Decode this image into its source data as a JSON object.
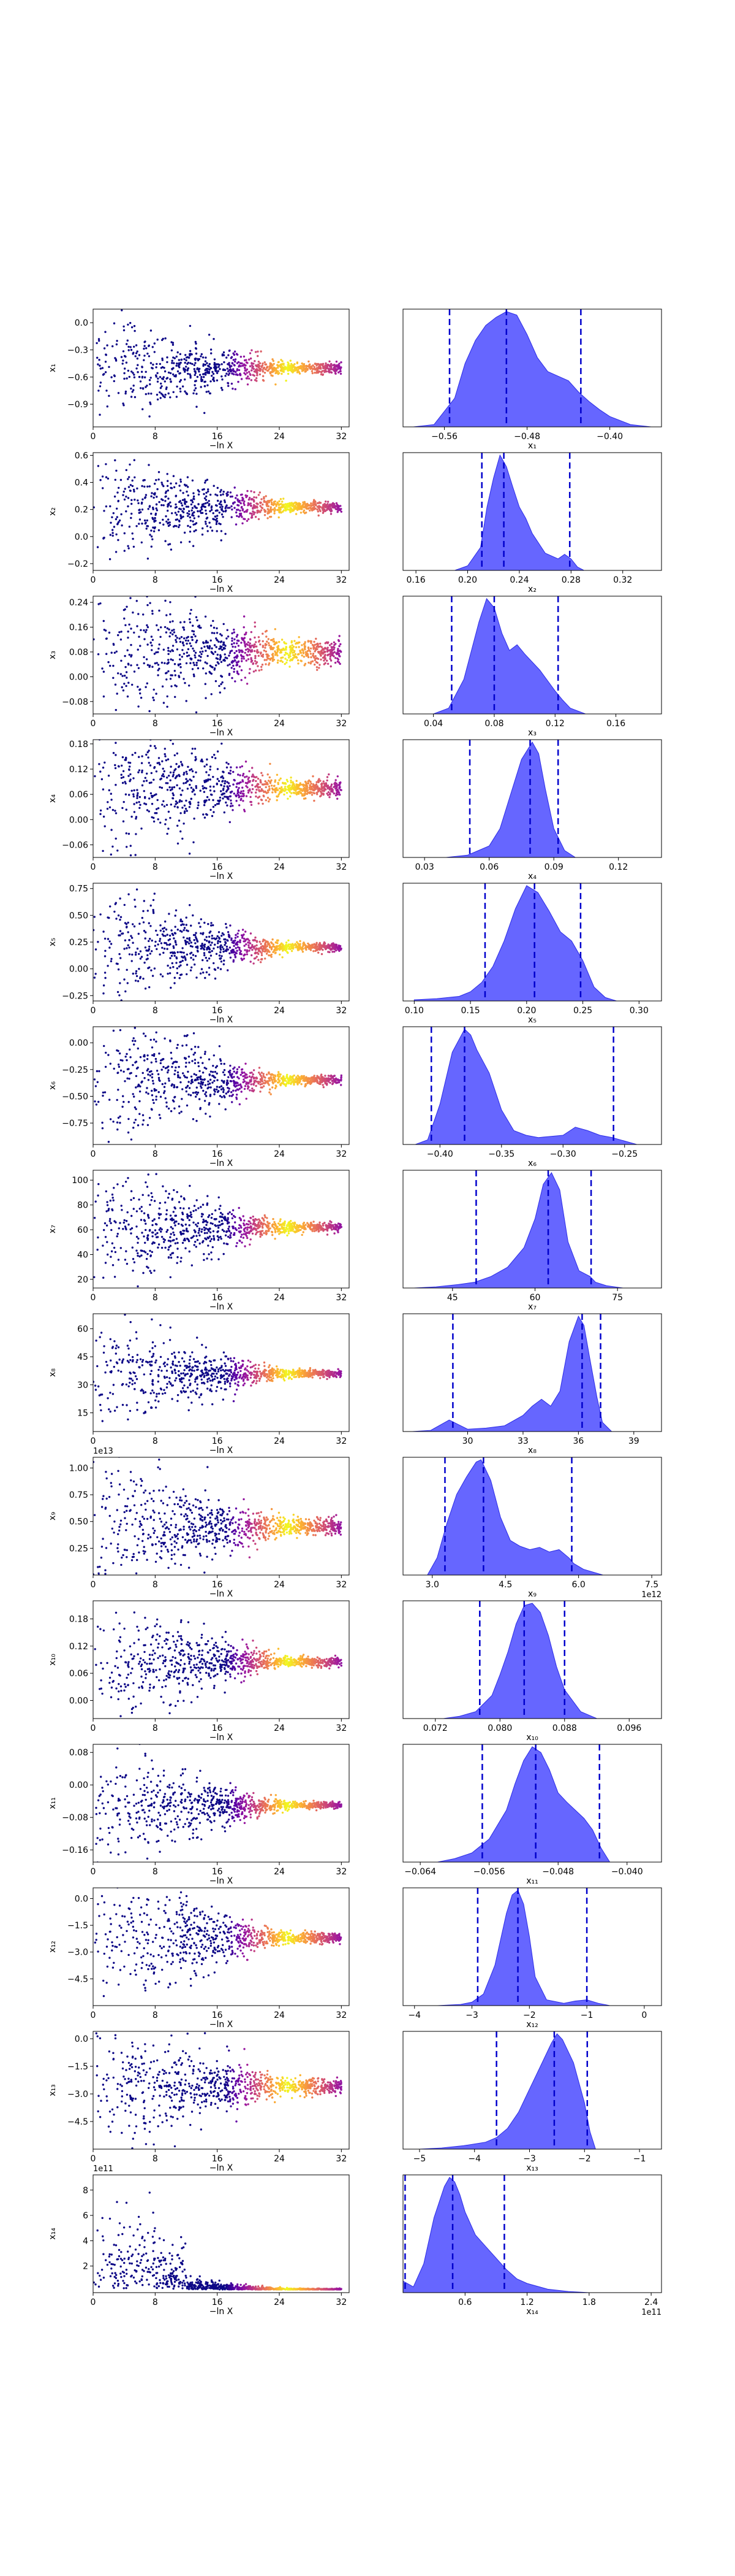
{
  "colors": {
    "trace_low": "#0d0887",
    "trace_high": "#f0f921",
    "kde_fill": "#5555ff",
    "kde_edge": "#2a2ae6",
    "quantile_line": "#0000cc"
  },
  "trace_xlabel": "−ln X",
  "trace_xticks": [
    0,
    8,
    16,
    24,
    32
  ],
  "chart_data": [
    {
      "param": "x1",
      "ylabel": "x₁",
      "yticks": [
        -0.9,
        -0.6,
        -0.3,
        0.0
      ],
      "yticklabels": [
        "−0.9",
        "−0.6",
        "−0.3",
        "0.0"
      ],
      "trace_center": -0.5,
      "trace_spread0": 0.28,
      "trace_spreadN": 0.03,
      "ylim": [
        -1.15,
        0.15
      ],
      "type": "trace+kde",
      "xlabel": "x₁",
      "xlim": [
        -0.6,
        -0.35
      ],
      "xticks": [
        -0.56,
        -0.48,
        -0.4
      ],
      "xticklabels": [
        "−0.56",
        "−0.48",
        "−0.40"
      ],
      "kde_x": [
        -0.59,
        -0.57,
        -0.55,
        -0.54,
        -0.53,
        -0.52,
        -0.51,
        -0.5,
        -0.49,
        -0.48,
        -0.47,
        -0.46,
        -0.45,
        -0.44,
        -0.43,
        -0.42,
        -0.41,
        -0.4,
        -0.38,
        -0.36
      ],
      "kde_y": [
        0.0,
        0.02,
        0.25,
        0.55,
        0.75,
        0.88,
        0.95,
        1.0,
        0.97,
        0.8,
        0.6,
        0.48,
        0.44,
        0.4,
        0.3,
        0.22,
        0.15,
        0.09,
        0.02,
        0.0
      ],
      "quantiles": [
        -0.555,
        -0.5,
        -0.428
      ]
    },
    {
      "param": "x2",
      "ylabel": "x₂",
      "yticks": [
        -0.2,
        0.0,
        0.2,
        0.4,
        0.6
      ],
      "yticklabels": [
        "−0.2",
        "0.0",
        "0.2",
        "0.4",
        "0.6"
      ],
      "trace_center": 0.22,
      "trace_spread0": 0.22,
      "trace_spreadN": 0.02,
      "ylim": [
        -0.25,
        0.62
      ],
      "type": "trace+kde",
      "xlabel": "x₂",
      "xlim": [
        0.15,
        0.35
      ],
      "xticks": [
        0.16,
        0.2,
        0.24,
        0.28,
        0.32
      ],
      "xticklabels": [
        "0.16",
        "0.20",
        "0.24",
        "0.28",
        "0.32"
      ],
      "kde_x": [
        0.19,
        0.2,
        0.21,
        0.215,
        0.22,
        0.225,
        0.23,
        0.235,
        0.24,
        0.245,
        0.25,
        0.26,
        0.27,
        0.275,
        0.28,
        0.285,
        0.29
      ],
      "kde_y": [
        0.0,
        0.04,
        0.2,
        0.55,
        0.8,
        1.0,
        0.9,
        0.72,
        0.55,
        0.45,
        0.32,
        0.15,
        0.1,
        0.14,
        0.1,
        0.03,
        0.0
      ],
      "quantiles": [
        0.211,
        0.228,
        0.279
      ]
    },
    {
      "param": "x3",
      "ylabel": "x₃",
      "yticks": [
        -0.08,
        0.0,
        0.08,
        0.16,
        0.24
      ],
      "yticklabels": [
        "−0.08",
        "0.00",
        "0.08",
        "0.16",
        "0.24"
      ],
      "trace_center": 0.08,
      "trace_spread0": 0.12,
      "trace_spreadN": 0.02,
      "ylim": [
        -0.12,
        0.26
      ],
      "type": "trace+kde",
      "xlabel": "x₃",
      "xlim": [
        0.02,
        0.19
      ],
      "xticks": [
        0.04,
        0.08,
        0.12,
        0.16
      ],
      "xticklabels": [
        "0.04",
        "0.08",
        "0.12",
        "0.16"
      ],
      "kde_x": [
        0.04,
        0.05,
        0.06,
        0.07,
        0.075,
        0.08,
        0.085,
        0.09,
        0.095,
        0.1,
        0.11,
        0.12,
        0.125,
        0.13,
        0.14
      ],
      "kde_y": [
        0.0,
        0.05,
        0.3,
        0.8,
        1.0,
        0.92,
        0.7,
        0.55,
        0.6,
        0.52,
        0.38,
        0.2,
        0.12,
        0.05,
        0.0
      ],
      "quantiles": [
        0.052,
        0.08,
        0.122
      ]
    },
    {
      "param": "x4",
      "ylabel": "x₄",
      "yticks": [
        -0.06,
        0.0,
        0.06,
        0.12,
        0.18
      ],
      "yticklabels": [
        "−0.06",
        "0.00",
        "0.06",
        "0.12",
        "0.18"
      ],
      "trace_center": 0.075,
      "trace_spread0": 0.09,
      "trace_spreadN": 0.01,
      "ylim": [
        -0.09,
        0.19
      ],
      "type": "trace+kde",
      "xlabel": "x₄",
      "xlim": [
        0.02,
        0.14
      ],
      "xticks": [
        0.03,
        0.06,
        0.09,
        0.12
      ],
      "xticklabels": [
        "0.03",
        "0.06",
        "0.09",
        "0.12"
      ],
      "kde_x": [
        0.04,
        0.05,
        0.06,
        0.065,
        0.07,
        0.075,
        0.08,
        0.083,
        0.086,
        0.09,
        0.095,
        0.1
      ],
      "kde_y": [
        0.0,
        0.02,
        0.1,
        0.25,
        0.55,
        0.85,
        1.0,
        0.9,
        0.6,
        0.25,
        0.06,
        0.0
      ],
      "quantiles": [
        0.051,
        0.079,
        0.092
      ]
    },
    {
      "param": "x5",
      "ylabel": "x₅",
      "yticks": [
        -0.25,
        0.0,
        0.25,
        0.5,
        0.75
      ],
      "yticklabels": [
        "−0.25",
        "0.00",
        "0.25",
        "0.50",
        "0.75"
      ],
      "trace_center": 0.2,
      "trace_spread0": 0.3,
      "trace_spreadN": 0.02,
      "ylim": [
        -0.3,
        0.8
      ],
      "type": "trace+kde",
      "xlabel": "x₅",
      "xlim": [
        0.09,
        0.32
      ],
      "xticks": [
        0.1,
        0.15,
        0.2,
        0.25,
        0.3
      ],
      "xticklabels": [
        "0.10",
        "0.15",
        "0.20",
        "0.25",
        "0.30"
      ],
      "kde_x": [
        0.1,
        0.12,
        0.14,
        0.15,
        0.16,
        0.17,
        0.18,
        0.19,
        0.2,
        0.21,
        0.22,
        0.23,
        0.24,
        0.25,
        0.26,
        0.27,
        0.28
      ],
      "kde_y": [
        0.01,
        0.02,
        0.04,
        0.08,
        0.16,
        0.3,
        0.52,
        0.8,
        1.0,
        0.94,
        0.78,
        0.6,
        0.52,
        0.35,
        0.12,
        0.03,
        0.0
      ],
      "quantiles": [
        0.163,
        0.207,
        0.248
      ]
    },
    {
      "param": "x6",
      "ylabel": "x₆",
      "yticks": [
        -0.75,
        -0.5,
        -0.25,
        0.0
      ],
      "yticklabels": [
        "−0.75",
        "−0.50",
        "−0.25",
        "0.00"
      ],
      "trace_center": -0.35,
      "trace_spread0": 0.35,
      "trace_spreadN": 0.02,
      "ylim": [
        -0.95,
        0.15
      ],
      "type": "trace+kde",
      "xlabel": "x₆",
      "xlim": [
        -0.43,
        -0.22
      ],
      "xticks": [
        -0.4,
        -0.35,
        -0.3,
        -0.25
      ],
      "xticklabels": [
        "−0.40",
        "−0.35",
        "−0.30",
        "−0.25"
      ],
      "kde_x": [
        -0.42,
        -0.41,
        -0.4,
        -0.39,
        -0.38,
        -0.375,
        -0.37,
        -0.36,
        -0.35,
        -0.34,
        -0.33,
        -0.32,
        -0.3,
        -0.29,
        -0.28,
        -0.27,
        -0.26,
        -0.24
      ],
      "kde_y": [
        0.0,
        0.04,
        0.35,
        0.8,
        1.0,
        0.95,
        0.82,
        0.62,
        0.3,
        0.12,
        0.08,
        0.06,
        0.08,
        0.15,
        0.12,
        0.08,
        0.06,
        0.0
      ],
      "quantiles": [
        -0.407,
        -0.38,
        -0.259
      ]
    },
    {
      "param": "x7",
      "ylabel": "x₇",
      "yticks": [
        20,
        40,
        60,
        80,
        100
      ],
      "yticklabels": [
        "20",
        "40",
        "60",
        "80",
        "100"
      ],
      "trace_center": 62,
      "trace_spread0": 24,
      "trace_spreadN": 2,
      "ylim": [
        13,
        108
      ],
      "type": "trace+kde",
      "xlabel": "x₇",
      "xlim": [
        36,
        83
      ],
      "xticks": [
        45,
        60,
        75
      ],
      "xticklabels": [
        "45",
        "60",
        "75"
      ],
      "kde_x": [
        38,
        42,
        46,
        49,
        52,
        55,
        58,
        60,
        61.5,
        63,
        64.5,
        66,
        68,
        70,
        71,
        73,
        76
      ],
      "kde_y": [
        0.0,
        0.01,
        0.03,
        0.05,
        0.1,
        0.18,
        0.35,
        0.6,
        0.9,
        1.0,
        0.85,
        0.4,
        0.15,
        0.1,
        0.05,
        0.02,
        0.0
      ],
      "quantiles": [
        49.3,
        62.4,
        70.2
      ]
    },
    {
      "param": "x8",
      "ylabel": "x₈",
      "yticks": [
        15,
        30,
        45,
        60
      ],
      "yticklabels": [
        "15",
        "30",
        "45",
        "60"
      ],
      "trace_center": 36,
      "trace_spread0": 15,
      "trace_spreadN": 1,
      "ylim": [
        5,
        68
      ],
      "type": "trace+kde",
      "xlabel": "x₈",
      "xlim": [
        26.5,
        40.5
      ],
      "xticks": [
        30,
        33,
        36,
        39
      ],
      "xticklabels": [
        "30",
        "33",
        "36",
        "39"
      ],
      "kde_x": [
        27,
        28,
        29,
        29.5,
        30,
        31,
        32,
        33,
        33.5,
        34,
        34.5,
        35,
        35.5,
        36,
        36.3,
        36.6,
        37,
        37.3,
        37.8
      ],
      "kde_y": [
        0.0,
        0.01,
        0.1,
        0.06,
        0.02,
        0.03,
        0.05,
        0.14,
        0.22,
        0.28,
        0.22,
        0.35,
        0.78,
        1.0,
        0.92,
        0.65,
        0.3,
        0.08,
        0.0
      ],
      "quantiles": [
        29.2,
        36.2,
        37.2
      ]
    },
    {
      "param": "x9",
      "ylabel": "x₉",
      "offset": "1e13",
      "yticks": [
        0.25,
        0.5,
        0.75,
        1.0
      ],
      "yticklabels": [
        "0.25",
        "0.50",
        "0.75",
        "1.00"
      ],
      "trace_center": 0.45,
      "trace_spread0": 0.32,
      "trace_spreadN": 0.04,
      "ylim": [
        0.0,
        1.1
      ],
      "type": "trace+kde",
      "xlabel": "x₉",
      "xoffset": "1e12",
      "xlim": [
        2.4,
        7.7
      ],
      "xticks": [
        3.0,
        4.5,
        6.0,
        7.5
      ],
      "xticklabels": [
        "3.0",
        "4.5",
        "6.0",
        "7.5"
      ],
      "kde_x": [
        2.9,
        3.1,
        3.3,
        3.5,
        3.7,
        3.9,
        4.0,
        4.2,
        4.4,
        4.6,
        4.8,
        5.0,
        5.2,
        5.4,
        5.6,
        5.8,
        5.9,
        6.1,
        6.5
      ],
      "kde_y": [
        0.0,
        0.15,
        0.45,
        0.7,
        0.85,
        0.98,
        1.0,
        0.82,
        0.5,
        0.3,
        0.25,
        0.22,
        0.24,
        0.2,
        0.22,
        0.15,
        0.1,
        0.05,
        0.0
      ],
      "quantiles": [
        3.26,
        4.05,
        5.86
      ]
    },
    {
      "param": "x10",
      "ylabel": "x₁₀",
      "yticks": [
        0.0,
        0.06,
        0.12,
        0.18
      ],
      "yticklabels": [
        "0.00",
        "0.06",
        "0.12",
        "0.18"
      ],
      "trace_center": 0.085,
      "trace_spread0": 0.07,
      "trace_spreadN": 0.005,
      "ylim": [
        -0.04,
        0.22
      ],
      "type": "trace+kde",
      "xlabel": "x₁₀",
      "xlim": [
        0.068,
        0.1
      ],
      "xticks": [
        0.072,
        0.08,
        0.088,
        0.096
      ],
      "xticklabels": [
        "0.072",
        "0.080",
        "0.088",
        "0.096"
      ],
      "kde_x": [
        0.073,
        0.075,
        0.077,
        0.079,
        0.08,
        0.081,
        0.082,
        0.083,
        0.084,
        0.085,
        0.086,
        0.087,
        0.088,
        0.09,
        0.092
      ],
      "kde_y": [
        0.0,
        0.02,
        0.06,
        0.2,
        0.38,
        0.58,
        0.82,
        0.98,
        1.0,
        0.92,
        0.72,
        0.45,
        0.25,
        0.06,
        0.0
      ],
      "quantiles": [
        0.0775,
        0.083,
        0.088
      ]
    },
    {
      "param": "x11",
      "ylabel": "x₁₁",
      "yticks": [
        -0.16,
        -0.08,
        0.0,
        0.08
      ],
      "yticklabels": [
        "−0.16",
        "−0.08",
        "0.00",
        "0.08"
      ],
      "trace_center": -0.05,
      "trace_spread0": 0.08,
      "trace_spreadN": 0.004,
      "ylim": [
        -0.19,
        0.1
      ],
      "type": "trace+kde",
      "xlabel": "x₁₁",
      "xlim": [
        -0.066,
        -0.036
      ],
      "xticks": [
        -0.064,
        -0.056,
        -0.048,
        -0.04
      ],
      "xticklabels": [
        "−0.064",
        "−0.056",
        "−0.048",
        "−0.040"
      ],
      "kde_x": [
        -0.062,
        -0.06,
        -0.058,
        -0.056,
        -0.054,
        -0.053,
        -0.052,
        -0.051,
        -0.05,
        -0.049,
        -0.048,
        -0.047,
        -0.046,
        -0.045,
        -0.044,
        -0.043,
        -0.042
      ],
      "kde_y": [
        0.0,
        0.03,
        0.08,
        0.2,
        0.45,
        0.68,
        0.88,
        1.0,
        0.95,
        0.8,
        0.6,
        0.52,
        0.45,
        0.38,
        0.28,
        0.12,
        0.0
      ],
      "quantiles": [
        -0.0568,
        -0.0506,
        -0.0432
      ]
    },
    {
      "param": "x12",
      "ylabel": "x₁₂",
      "yticks": [
        -4.5,
        -3.0,
        -1.5,
        0.0
      ],
      "yticklabels": [
        "−4.5",
        "−3.0",
        "−1.5",
        "0.0"
      ],
      "trace_center": -2.2,
      "trace_spread0": 2.3,
      "trace_spreadN": 0.15,
      "ylim": [
        -6.0,
        0.6
      ],
      "type": "trace+kde",
      "xlabel": "x₁₂",
      "xlim": [
        -4.2,
        0.3
      ],
      "xticks": [
        -4,
        -3,
        -2,
        -1,
        0
      ],
      "xticklabels": [
        "−4",
        "−3",
        "−2",
        "−1",
        "0"
      ],
      "kde_x": [
        -3.6,
        -3.2,
        -3.0,
        -2.8,
        -2.6,
        -2.4,
        -2.3,
        -2.2,
        -2.1,
        -2.0,
        -1.9,
        -1.7,
        -1.4,
        -1.2,
        -1.0,
        -0.8,
        -0.6
      ],
      "kde_y": [
        0.0,
        0.01,
        0.03,
        0.1,
        0.35,
        0.8,
        0.96,
        1.0,
        0.88,
        0.6,
        0.25,
        0.05,
        0.02,
        0.04,
        0.05,
        0.02,
        0.0
      ],
      "quantiles": [
        -2.9,
        -2.2,
        -1.0
      ]
    },
    {
      "param": "x13",
      "ylabel": "x₁₃",
      "yticks": [
        -4.5,
        -3.0,
        -1.5,
        0.0
      ],
      "yticklabels": [
        "−4.5",
        "−3.0",
        "−1.5",
        "0.0"
      ],
      "trace_center": -2.6,
      "trace_spread0": 2.0,
      "trace_spreadN": 0.2,
      "ylim": [
        -6.0,
        0.4
      ],
      "type": "trace+kde",
      "xlabel": "x₁₃",
      "xlim": [
        -5.3,
        -0.6
      ],
      "xticks": [
        -5,
        -4,
        -3,
        -2,
        -1
      ],
      "xticklabels": [
        "−5",
        "−4",
        "−3",
        "−2",
        "−1"
      ],
      "kde_x": [
        -5.0,
        -4.6,
        -4.2,
        -3.8,
        -3.6,
        -3.4,
        -3.2,
        -3.0,
        -2.8,
        -2.6,
        -2.5,
        -2.4,
        -2.2,
        -2.0,
        -1.9,
        -1.8
      ],
      "kde_y": [
        0.0,
        0.01,
        0.03,
        0.06,
        0.1,
        0.18,
        0.32,
        0.52,
        0.72,
        0.92,
        1.0,
        0.95,
        0.75,
        0.4,
        0.15,
        0.0
      ],
      "quantiles": [
        -3.6,
        -2.55,
        -1.95
      ]
    },
    {
      "param": "x14",
      "ylabel": "x₁₄",
      "offset": "1e11",
      "yticks": [
        2,
        4,
        6,
        8
      ],
      "yticklabels": [
        "2",
        "4",
        "6",
        "8"
      ],
      "trace_center": 0.3,
      "trace_spread0": 1.5,
      "trace_spreadN": 0.05,
      "ylim": [
        -0.1,
        9.2
      ],
      "skewed": true,
      "type": "trace+kde",
      "xlabel": "x₁₄",
      "xoffset": "1e11",
      "xlim": [
        0.0,
        2.5
      ],
      "xticks": [
        0.6,
        1.2,
        1.8,
        2.4
      ],
      "xticklabels": [
        "0.6",
        "1.2",
        "1.8",
        "2.4"
      ],
      "kde_x": [
        0.0,
        0.1,
        0.2,
        0.3,
        0.4,
        0.45,
        0.5,
        0.55,
        0.6,
        0.7,
        0.8,
        0.9,
        1.0,
        1.1,
        1.2,
        1.4,
        1.6,
        1.8
      ],
      "kde_y": [
        0.1,
        0.05,
        0.25,
        0.65,
        0.92,
        1.0,
        0.96,
        0.85,
        0.7,
        0.5,
        0.4,
        0.3,
        0.2,
        0.12,
        0.08,
        0.03,
        0.01,
        0.0
      ],
      "quantiles": [
        0.02,
        0.48,
        0.98
      ]
    }
  ]
}
